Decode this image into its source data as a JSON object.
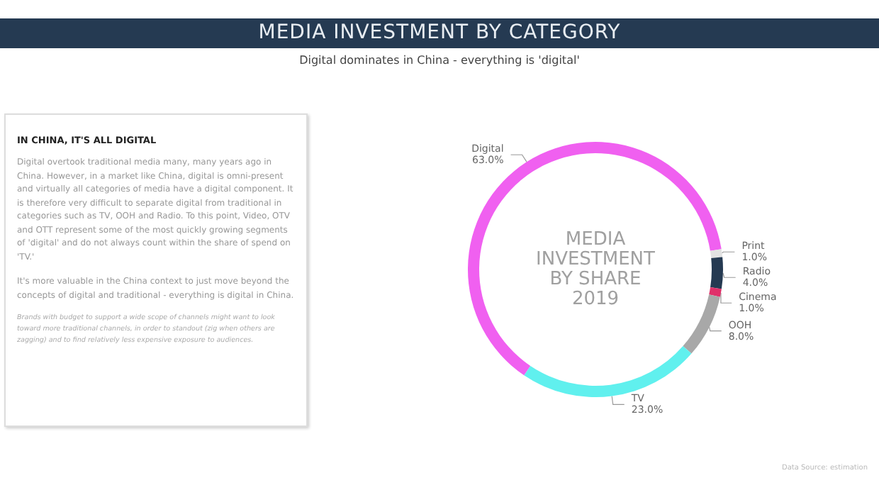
{
  "chart_data": {
    "type": "donut",
    "title": "MEDIA INVESTMENT BY CATEGORY",
    "subtitle": "Digital dominates in China - everything is 'digital'",
    "categories": [
      "Digital",
      "Print",
      "Radio",
      "Cinema",
      "OOH",
      "TV"
    ],
    "values": [
      63,
      1,
      4,
      1,
      8,
      23
    ],
    "value_labels": [
      "63.0%",
      "1.0%",
      "4.0%",
      "1.0%",
      "8.0%",
      "23.0%"
    ],
    "colors": [
      "#f060f0",
      "#e2e2e2",
      "#253a52",
      "#e0306a",
      "#a8a8a8",
      "#60f0ee"
    ],
    "legend": false,
    "annotations": [
      "MEDIA\nINVESTMENT\nBY SHARE\n2019",
      "IN CHINA, IT'S ALL DIGITAL",
      "Digital overtook traditional media many, many years ago in China. However, in a market like China, digital is omni-present and virtually all categories of media have a digital component. It is therefore very difficult to separate digital from traditional in categories such as TV, OOH and Radio. To this point, Video, OTV and OTT represent some of the most quickly growing segments of 'digital' and do not always count within the share of spend on 'TV.'",
      "It's more valuable in the China context to just move beyond the concepts of digital and traditional - everything is digital in China.",
      "Brands with budget to support a wide scope of channels might want to look toward more traditional channels, in order to standout (zig when others are zagging) and to find relatively less expensive exposure to audiences.",
      "Data Source: estimation"
    ]
  }
}
